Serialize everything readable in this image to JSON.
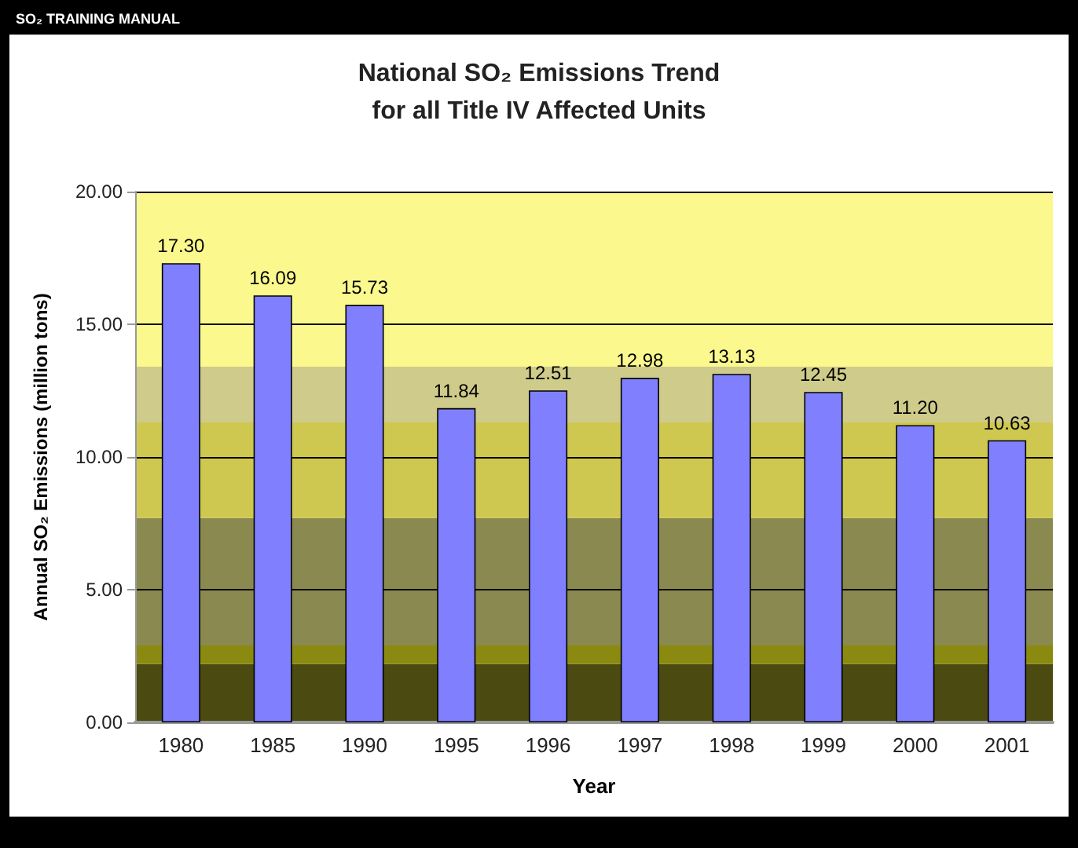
{
  "chart_data": {
    "type": "bar",
    "title": "National SO₂ Emissions Trend\nfor all Title IV Affected Units",
    "xlabel": "Year",
    "ylabel": "Annual SO₂ Emissions (million tons)",
    "annotations": [
      "SO₂ TRAINING MANUAL"
    ],
    "categories": [
      "1980",
      "1985",
      "1990",
      "1995",
      "1996",
      "1997",
      "1998",
      "1999",
      "2000",
      "2001"
    ],
    "values": [
      17.3,
      16.09,
      15.73,
      11.84,
      12.51,
      12.98,
      13.13,
      12.45,
      11.2,
      10.63
    ],
    "color": "#8080ff",
    "value_labels": [
      "17.30",
      "16.09",
      "15.73",
      "11.84",
      "12.51",
      "12.98",
      "13.13",
      "12.45",
      "11.20",
      "10.63"
    ],
    "ylim": [
      0,
      20
    ],
    "yticks": [
      {
        "value": 0,
        "label": "0.00"
      },
      {
        "value": 5,
        "label": "5.00"
      },
      {
        "value": 10,
        "label": "10.00"
      },
      {
        "value": 15,
        "label": "15.00"
      },
      {
        "value": 20,
        "label": "20.00"
      }
    ],
    "grid": "y",
    "bands": [
      {
        "axis": "y",
        "from": 0,
        "to": 2.2,
        "label": null,
        "color": "#4b4a10"
      },
      {
        "axis": "y",
        "from": 2.2,
        "to": 2.9,
        "label": null,
        "color": "#8a8a10"
      },
      {
        "axis": "y",
        "from": 2.9,
        "to": 7.7,
        "label": null,
        "color": "#8a8a50"
      },
      {
        "axis": "y",
        "from": 7.7,
        "to": 11.3,
        "label": null,
        "color": "#cfc850"
      },
      {
        "axis": "y",
        "from": 11.3,
        "to": 13.4,
        "label": null,
        "color": "#cfcb8a"
      },
      {
        "axis": "y",
        "from": 13.4,
        "to": 20,
        "label": null,
        "color": "#fbf98e"
      }
    ]
  }
}
